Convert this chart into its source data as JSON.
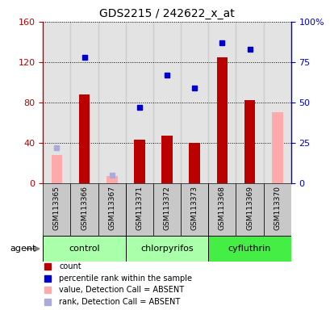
{
  "title": "GDS2215 / 242622_x_at",
  "samples": [
    "GSM113365",
    "GSM113366",
    "GSM113367",
    "GSM113371",
    "GSM113372",
    "GSM113373",
    "GSM113368",
    "GSM113369",
    "GSM113370"
  ],
  "red_bars": [
    28,
    88,
    7,
    43,
    47,
    40,
    125,
    82,
    0
  ],
  "blue_squares": [
    null,
    78,
    null,
    47,
    67,
    59,
    87,
    83,
    null
  ],
  "pink_bars": [
    28,
    0,
    7,
    0,
    0,
    0,
    0,
    0,
    70
  ],
  "light_blue_sq": [
    22,
    0,
    5,
    0,
    0,
    0,
    0,
    0,
    0
  ],
  "absent_mask": [
    true,
    false,
    true,
    false,
    false,
    false,
    false,
    false,
    true
  ],
  "group_configs": [
    {
      "label": "control",
      "start": 0,
      "end": 2,
      "color": "#AAFFAA"
    },
    {
      "label": "chlorpyrifos",
      "start": 3,
      "end": 5,
      "color": "#AAFFAA"
    },
    {
      "label": "cyfluthrin",
      "start": 6,
      "end": 8,
      "color": "#44EE44"
    }
  ],
  "ylim_left": [
    0,
    160
  ],
  "ylim_right": [
    0,
    100
  ],
  "yticks_left": [
    0,
    40,
    80,
    120,
    160
  ],
  "yticks_right": [
    0,
    25,
    50,
    75,
    100
  ],
  "ytick_labels_right": [
    "0",
    "25",
    "50",
    "75",
    "100%"
  ],
  "red_color": "#BB0000",
  "pink_color": "#FFAAAA",
  "blue_color": "#0000CC",
  "light_blue_color": "#AAAADD",
  "gray_color": "#C8C8C8",
  "bar_width": 0.4,
  "sq_size": 5
}
